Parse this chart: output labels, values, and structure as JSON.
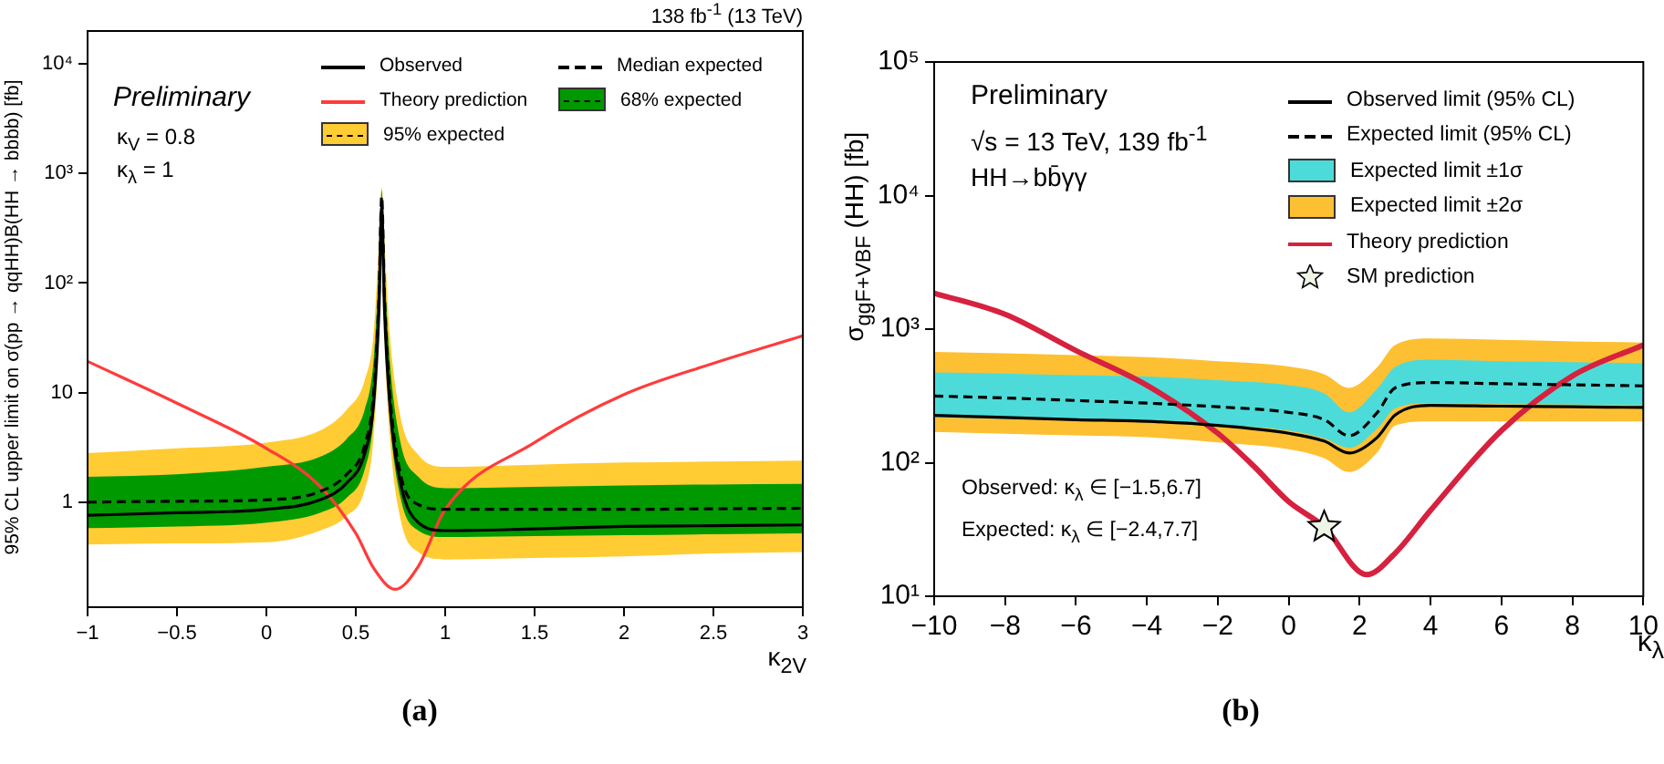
{
  "chart_data": [
    {
      "type": "line",
      "xlabel": "κ$_{2V}$",
      "ylabel": "95% CL upper limit on σ(pp → qqHH)B(HH → bbbb) [fb]",
      "annotations": [
        "Preliminary",
        "κ$_{V}$ = 0.8",
        "κ$_{λ}$ = 1",
        "138 fb$^{-1}$ (13 TeV)",
        "(a)"
      ],
      "x": [
        -1,
        -0.5,
        0,
        0.3,
        0.45,
        0.55,
        0.6,
        0.63,
        0.645,
        0.66,
        0.69,
        0.75,
        0.85,
        1,
        1.5,
        2,
        2.5,
        3
      ],
      "series": [
        {
          "name": "Observed",
          "color": "#000000",
          "line_style": "solid",
          "values": [
            0.76,
            0.8,
            0.86,
            1.05,
            1.5,
            2.8,
            8,
            60,
            500,
            60,
            8,
            1.5,
            0.65,
            0.55,
            0.57,
            0.6,
            0.61,
            0.62
          ]
        },
        {
          "name": "Median expected",
          "color": "#000000",
          "line_style": "dashed",
          "values": [
            1.0,
            1.02,
            1.05,
            1.25,
            1.8,
            3.3,
            10,
            80,
            620,
            80,
            10,
            1.8,
            0.95,
            0.86,
            0.86,
            0.86,
            0.87,
            0.88
          ]
        },
        {
          "name": "Theory prediction",
          "color": "#ff3b3b",
          "x": [
            -1,
            -0.5,
            0,
            0.3,
            0.5,
            0.6,
            0.72,
            0.85,
            1,
            1.5,
            2,
            2.5,
            3
          ],
          "values": [
            19.3,
            8,
            3.1,
            1.4,
            0.52,
            0.25,
            0.16,
            0.26,
            0.86,
            3.5,
            9.6,
            18.5,
            33
          ]
        },
        {
          "name": "68% expected",
          "color": "#009900",
          "line_style": "dashed",
          "values": [
            null,
            null,
            null,
            null,
            null,
            null,
            null,
            null,
            null,
            null,
            null,
            null,
            null,
            null,
            null,
            null,
            null,
            null
          ],
          "lower": [
            0.58,
            0.6,
            0.65,
            0.8,
            1.1,
            2,
            6,
            50,
            450,
            50,
            6,
            1.1,
            0.55,
            0.48,
            0.49,
            0.5,
            0.51,
            0.52
          ],
          "upper": [
            1.7,
            1.8,
            2.1,
            2.6,
            3.8,
            7,
            20,
            150,
            700,
            150,
            20,
            3.5,
            1.7,
            1.34,
            1.38,
            1.42,
            1.45,
            1.47
          ]
        },
        {
          "name": "95% expected",
          "color": "#ffcc33",
          "line_style": "dashed",
          "values": [
            null,
            null,
            null,
            null,
            null,
            null,
            null,
            null,
            null,
            null,
            null,
            null,
            null,
            null,
            null,
            null,
            null,
            null
          ],
          "lower": [
            0.41,
            0.42,
            0.43,
            0.55,
            0.75,
            1.3,
            4,
            35,
            380,
            35,
            4,
            0.7,
            0.35,
            0.3,
            0.31,
            0.32,
            0.34,
            0.35
          ],
          "upper": [
            2.8,
            3.1,
            3.5,
            4.5,
            7,
            13,
            35,
            250,
            750,
            250,
            35,
            6,
            2.7,
            2.1,
            2.2,
            2.3,
            2.35,
            2.4
          ]
        }
      ],
      "xlim": [
        -1,
        3
      ],
      "xticks": [
        -1,
        -0.5,
        0,
        0.5,
        1,
        1.5,
        2,
        2.5,
        3
      ],
      "ylim": [
        0.11,
        20000
      ],
      "yticks": [
        1,
        10,
        {
          "value": 100,
          "label": "10²"
        },
        {
          "value": 1000,
          "label": "10³"
        },
        {
          "value": 10000,
          "label": "10⁴"
        }
      ],
      "log": true,
      "legend": "top right"
    },
    {
      "type": "line",
      "xlabel": "κ$_{λ}$",
      "ylabel": "σ$_{ggF+VBF}$ (HH) [fb]",
      "annotations": [
        "Preliminary",
        "√s = 13 TeV, 139 fb$^{-1}$",
        "HH→bb̄γγ",
        "Observed: κ$_{λ}$ ∈ [−1.5,6.7]",
        "Expected: κ$_{λ}$ ∈ [−2.4,7.7]",
        "(b)"
      ],
      "x": [
        -10,
        -8,
        -6,
        -4,
        -2,
        0,
        1,
        1.7,
        2.5,
        3,
        4,
        6,
        8,
        10
      ],
      "series": [
        {
          "name": "Observed limit (95% CL)",
          "color": "#000000",
          "line_style": "solid",
          "values": [
            226,
            218,
            210,
            204,
            190,
            166,
            145,
            118,
            155,
            227,
            269,
            265,
            262,
            259
          ]
        },
        {
          "name": "Expected limit (95% CL)",
          "color": "#000000",
          "line_style": "dashed",
          "values": [
            316,
            305,
            292,
            279,
            262,
            238,
            210,
            159,
            238,
            363,
            398,
            390,
            383,
            376
          ]
        },
        {
          "name": "Expected limit ±1σ",
          "color": "#4ddbd9",
          "values": [
            null,
            null,
            null,
            null,
            null,
            null,
            null,
            null,
            null,
            null,
            null,
            null,
            null,
            null
          ],
          "lower": [
            219,
            213,
            208,
            204,
            192,
            174,
            152,
            129,
            180,
            255,
            279,
            275,
            272,
            269
          ],
          "upper": [
            474,
            465,
            452,
            441,
            415,
            380,
            330,
            238,
            360,
            520,
            590,
            575,
            565,
            556
          ]
        },
        {
          "name": "Expected limit ±2σ",
          "color": "#fdc032",
          "values": [
            null,
            null,
            null,
            null,
            null,
            null,
            null,
            null,
            null,
            null,
            null,
            null,
            null,
            null
          ],
          "lower": [
            170,
            165,
            160,
            155,
            142,
            126,
            108,
            85,
            120,
            190,
            204,
            204,
            204,
            204
          ],
          "upper": [
            676,
            660,
            640,
            617,
            575,
            525,
            460,
            363,
            520,
            760,
            850,
            830,
            810,
            794
          ]
        },
        {
          "name": "Theory prediction",
          "color": "#d6213f",
          "x": [
            -10,
            -8,
            -6,
            -4,
            -2,
            -1,
            0,
            1,
            2.2,
            3,
            4,
            6,
            8,
            10
          ],
          "values": [
            1860,
            1290,
            690,
            380,
            166,
            95,
            51,
            33,
            14.5,
            21,
            44,
            174,
            446,
            760
          ]
        },
        {
          "name": "SM prediction",
          "type": "scatter",
          "marker": "star",
          "color": "#eef5e6",
          "x": [
            1
          ],
          "values": [
            33
          ]
        }
      ],
      "xlim": [
        -10,
        10
      ],
      "xticks": [
        -10,
        -8,
        -6,
        -4,
        -2,
        0,
        2,
        4,
        6,
        8,
        10
      ],
      "ylim": [
        10,
        100000
      ],
      "yticks": [
        {
          "value": 10,
          "label": "10¹"
        },
        {
          "value": 100,
          "label": "10²"
        },
        {
          "value": 1000,
          "label": "10³"
        },
        {
          "value": 10000,
          "label": "10⁴"
        },
        {
          "value": 100000,
          "label": "10⁵"
        }
      ],
      "log": true,
      "legend": "top right"
    }
  ]
}
